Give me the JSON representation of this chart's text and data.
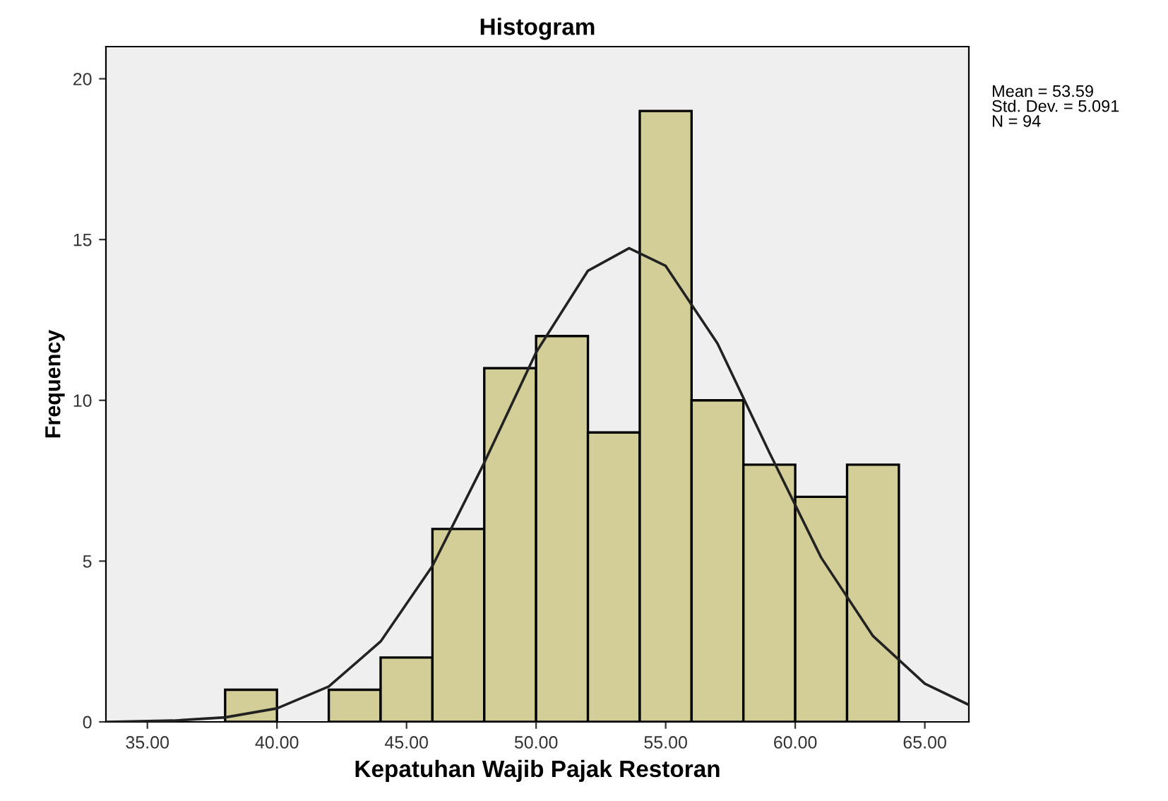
{
  "chart_data": {
    "type": "histogram",
    "title": "Histogram",
    "xlabel": "Kepatuhan Wajib Pajak Restoran",
    "ylabel": "Frequency",
    "bins": [
      38,
      40,
      42,
      44,
      46,
      48,
      50,
      52,
      54,
      56,
      58,
      60,
      62,
      64
    ],
    "values": [
      1,
      0,
      1,
      2,
      6,
      11,
      12,
      9,
      19,
      10,
      8,
      7,
      8
    ],
    "color": "#d3cd98",
    "series": [
      {
        "type": "line",
        "color": "#222222",
        "x": [
          33.4,
          36,
          38,
          40,
          42,
          44,
          46,
          48,
          50,
          52,
          53.59,
          55,
          57,
          59,
          61,
          63,
          65,
          66.7
        ],
        "values": [
          0.0,
          0.04,
          0.14,
          0.42,
          1.1,
          2.5,
          4.85,
          8.06,
          11.49,
          14.03,
          14.73,
          14.18,
          11.77,
          8.38,
          5.11,
          2.67,
          1.19,
          0.53
        ]
      }
    ],
    "xlim": [
      33.4,
      66.7
    ],
    "ylim": [
      0,
      21
    ],
    "xticks": [
      {
        "value": 35,
        "label": "35.00"
      },
      {
        "value": 40,
        "label": "40.00"
      },
      {
        "value": 45,
        "label": "45.00"
      },
      {
        "value": 50,
        "label": "50.00"
      },
      {
        "value": 55,
        "label": "55.00"
      },
      {
        "value": 60,
        "label": "60.00"
      },
      {
        "value": 65,
        "label": "65.00"
      }
    ],
    "yticks": [
      0,
      5,
      10,
      15,
      20
    ],
    "grid": false,
    "legend": false,
    "annotations": [
      "Mean = 53.59\nStd. Dev. = 5.091\nN = 94"
    ]
  }
}
